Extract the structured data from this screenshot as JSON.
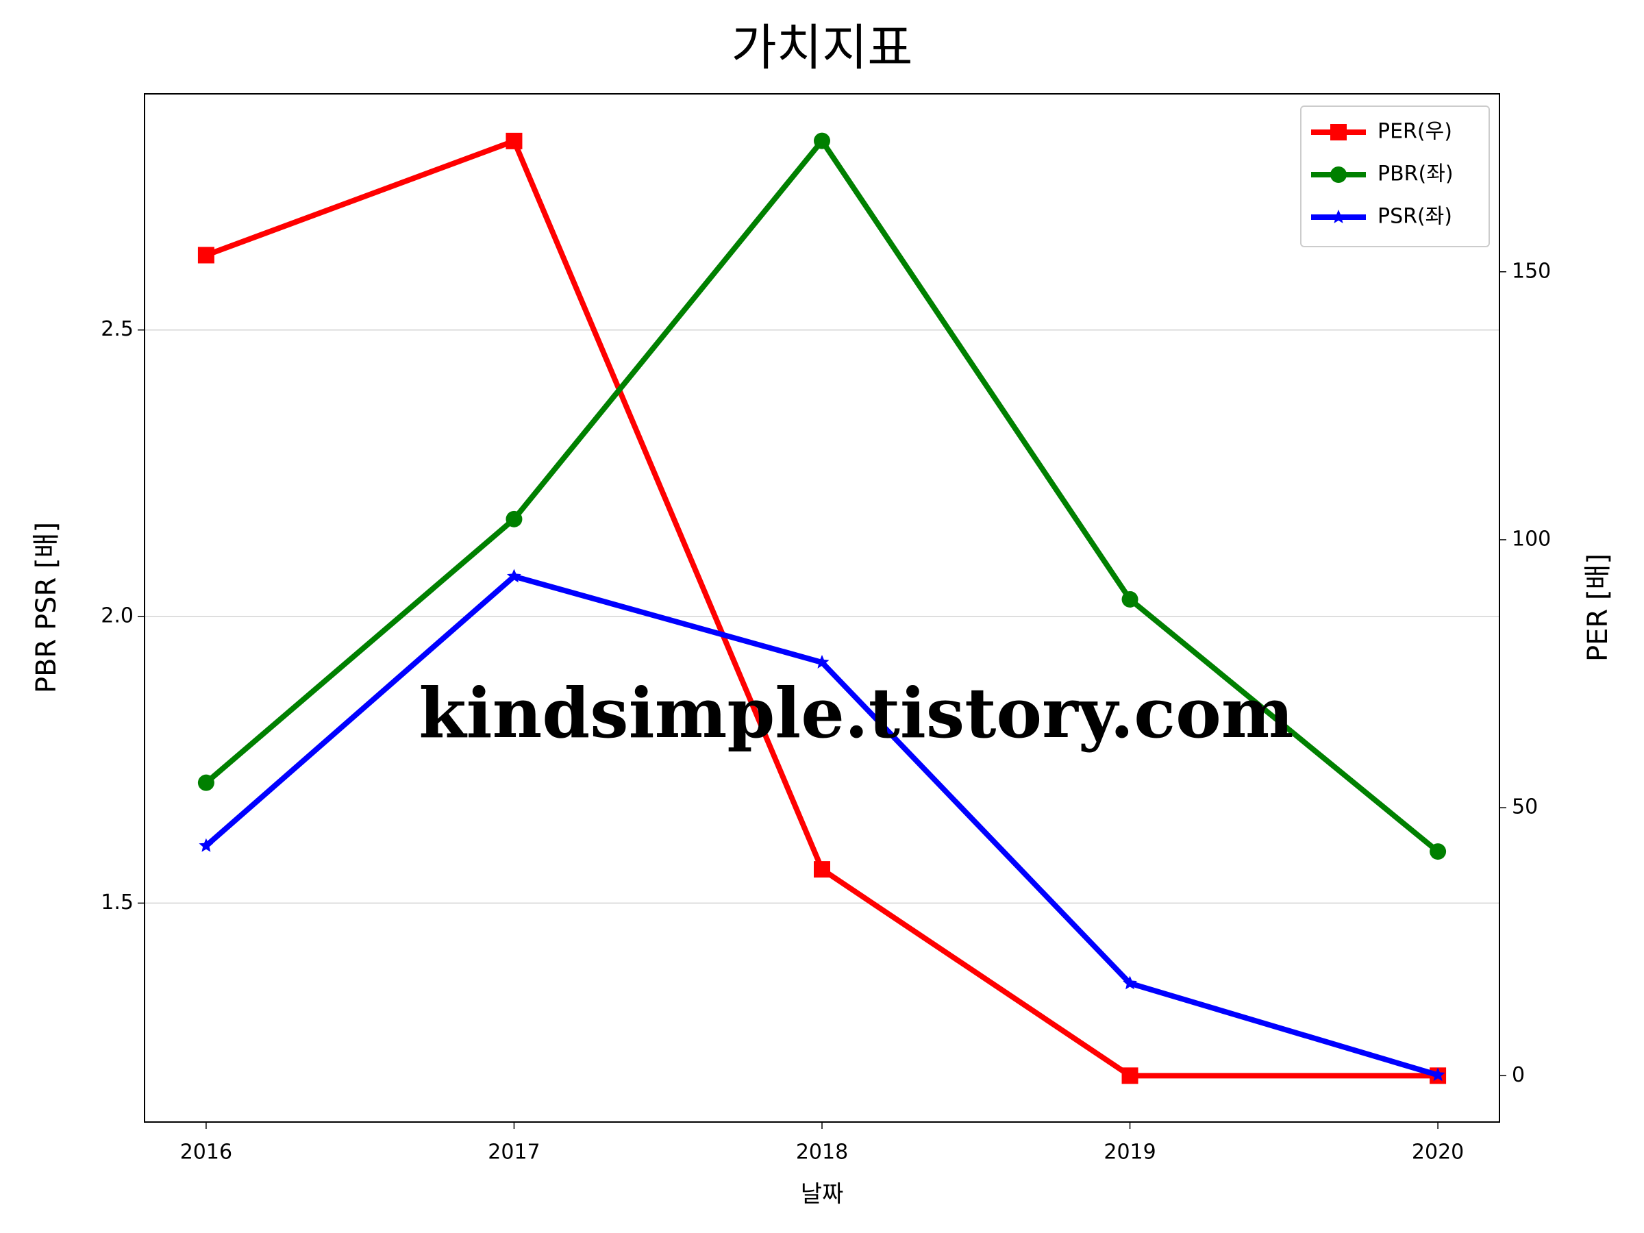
{
  "chart_data": {
    "type": "line",
    "title": "가치지표",
    "x_label": "날짜",
    "y_label": "PBR PSR [배]",
    "y2_label": "PER [배]",
    "x": [
      2016,
      2017,
      2018,
      2019,
      2020
    ],
    "xlim": [
      2015.8,
      2020.2
    ],
    "xticks": [
      2016,
      2017,
      2018,
      2019,
      2020
    ],
    "ylim": [
      1.118,
      2.912
    ],
    "yticks": [
      {
        "value": 1.5,
        "label": "1.5"
      },
      {
        "value": 2.0,
        "label": "2.0"
      },
      {
        "value": 2.5,
        "label": "2.5"
      }
    ],
    "y2lim": [
      -8.65,
      183.2
    ],
    "y2ticks": [
      0,
      50,
      100,
      150
    ],
    "grid": true,
    "legend": "upper right",
    "y_label_color": "#008000",
    "y2_label_color": "#ff0000",
    "annotation": "kindsimple.tistory.com",
    "series": [
      {
        "name": "PER(우)",
        "color": "#ff0000",
        "marker": "square",
        "axis": "y2",
        "values": [
          153.1,
          174.4,
          38.5,
          0,
          0
        ]
      },
      {
        "name": "PBR(좌)",
        "color": "#008000",
        "marker": "circle",
        "values": [
          1.71,
          2.17,
          2.83,
          2.03,
          1.59
        ]
      },
      {
        "name": "PSR(좌)",
        "color": "#0000ff",
        "marker": "star",
        "values": [
          1.6,
          2.07,
          1.92,
          1.36,
          1.2
        ]
      }
    ]
  }
}
